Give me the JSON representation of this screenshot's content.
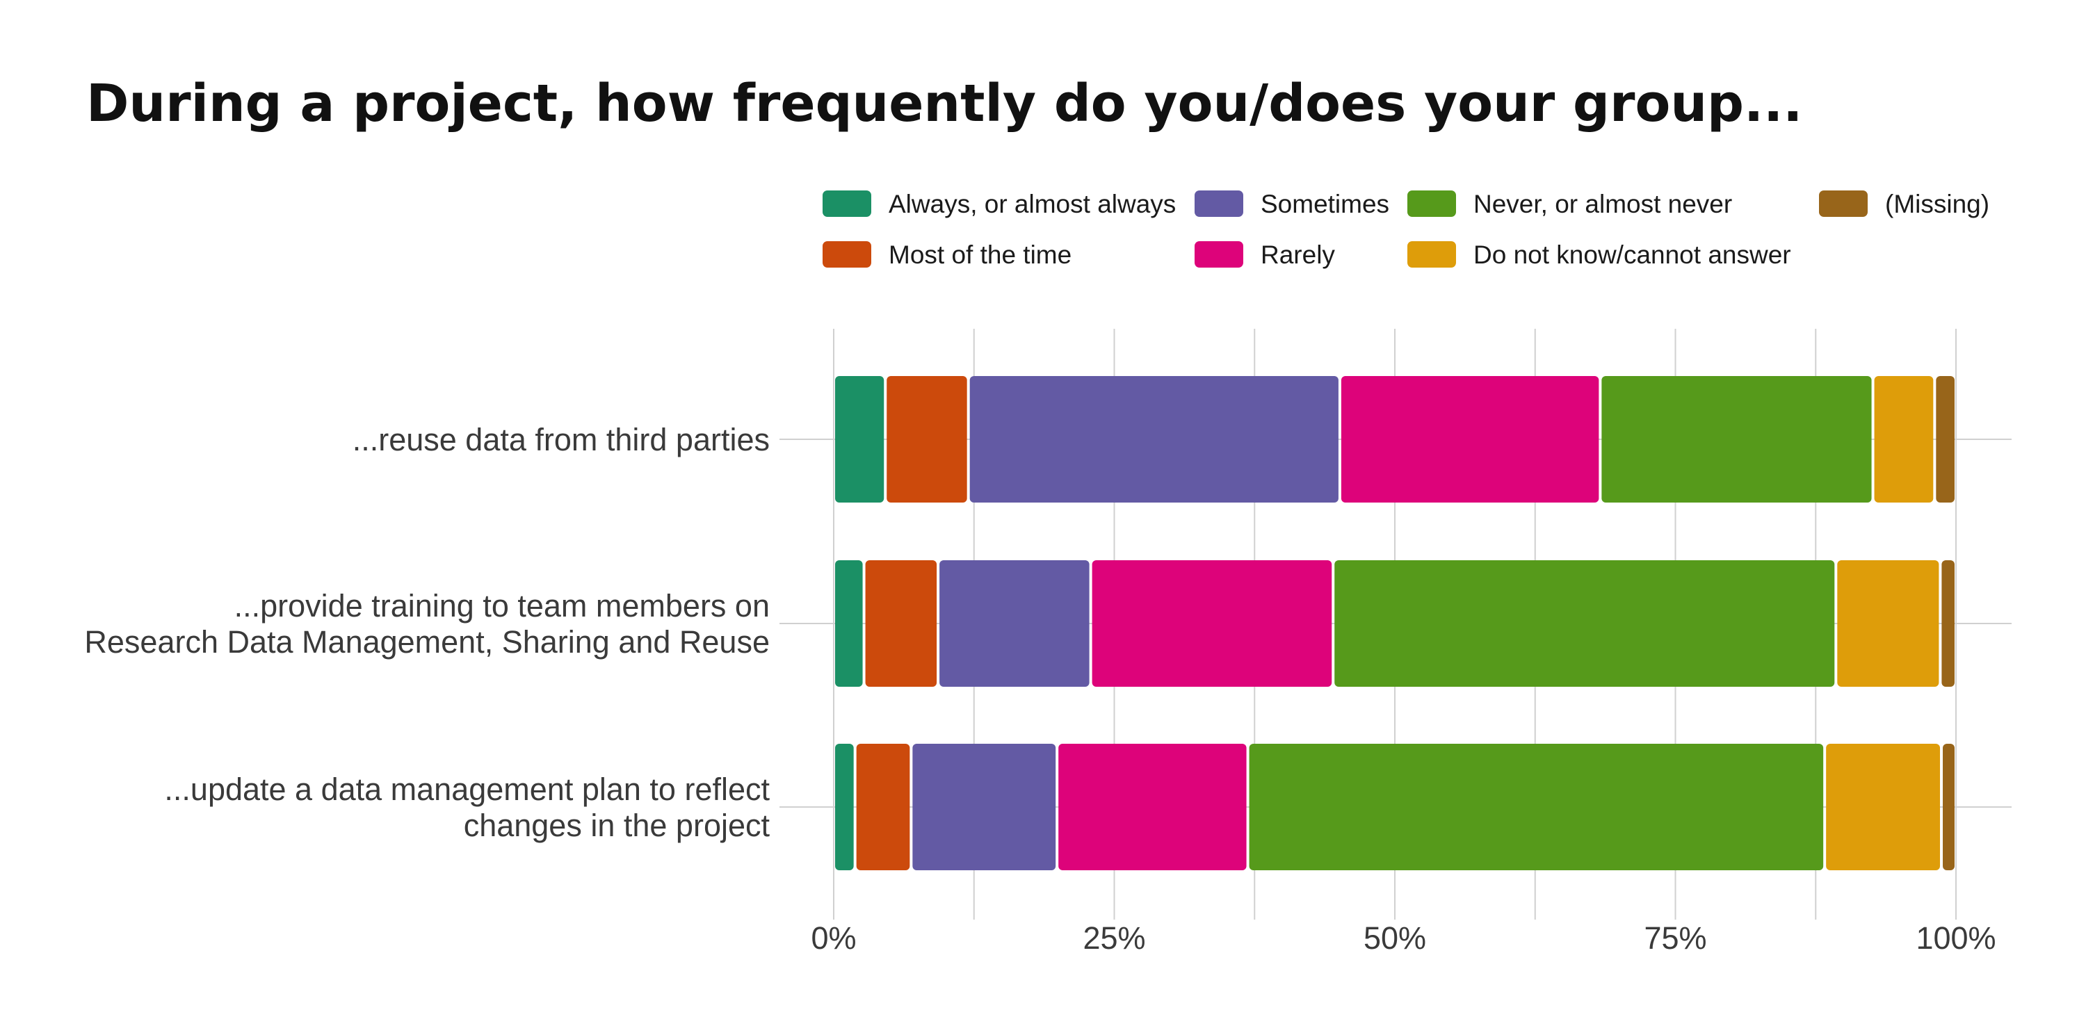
{
  "chart_data": {
    "type": "bar",
    "orientation": "horizontal",
    "stacked": "percent",
    "title": "During a project, how frequently do you/does your group...",
    "categories": [
      [
        "...reuse data from third parties"
      ],
      [
        "...provide training to team members on",
        "Research Data Management, Sharing and Reuse"
      ],
      [
        "...update a data management plan to reflect",
        "changes in the project"
      ]
    ],
    "series": [
      {
        "name": "Always, or almost always",
        "color": "#1b9065",
        "values": [
          4.6,
          2.7,
          1.9
        ]
      },
      {
        "name": "Most of the time",
        "color": "#cc4a0c",
        "values": [
          7.4,
          6.6,
          5.0
        ]
      },
      {
        "name": "Sometimes",
        "color": "#635aa4",
        "values": [
          33.1,
          13.6,
          13.0
        ]
      },
      {
        "name": "Rarely",
        "color": "#dd037a",
        "values": [
          23.2,
          21.6,
          17.0
        ]
      },
      {
        "name": "Never, or almost never",
        "color": "#569a1b",
        "values": [
          24.3,
          44.8,
          51.4
        ]
      },
      {
        "name": "Do not know/cannot answer",
        "color": "#de9d0a",
        "values": [
          5.5,
          9.3,
          10.4
        ]
      },
      {
        "name": "(Missing)",
        "color": "#98651a",
        "values": [
          1.9,
          1.4,
          1.3
        ]
      }
    ],
    "xlim": [
      0,
      100
    ],
    "xticks": [
      0,
      25,
      50,
      75,
      100
    ],
    "xtick_labels": [
      "0%",
      "25%",
      "50%",
      "75%",
      "100%"
    ],
    "grid": true,
    "legend_position": "top"
  }
}
